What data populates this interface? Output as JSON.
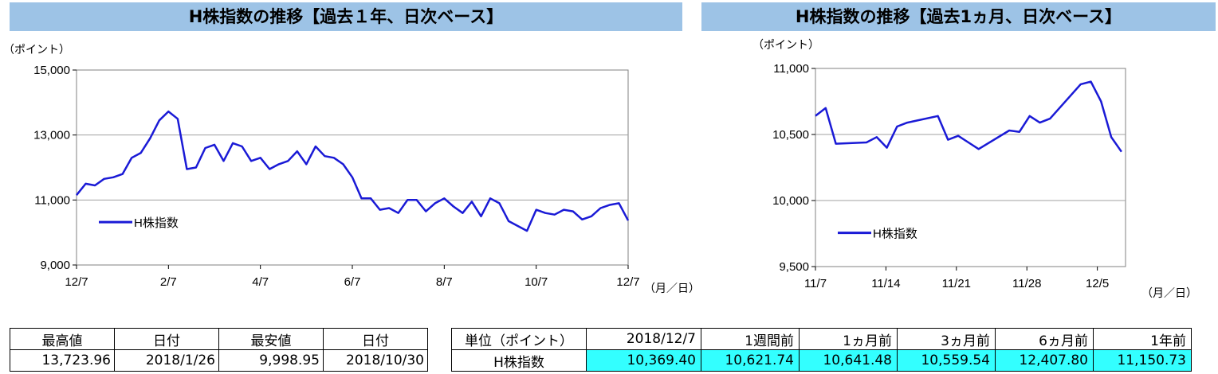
{
  "charts_titles": {
    "left": "H株指数の推移【過去１年、日次ベース】",
    "right": "H株指数の推移【過去1ヵ月、日次ベース】"
  },
  "colors": {
    "line": "#1a1ad6",
    "title_bg": "#9dc3e6",
    "highlight": "#33ffff"
  },
  "chart_data": [
    {
      "type": "line",
      "title": "H株指数の推移【過去１年、日次ベース】",
      "ylabel": "（ポイント）",
      "xunit": "（月／日）",
      "ylim": [
        9000,
        15000
      ],
      "yticks": [
        "9,000",
        "11,000",
        "13,000",
        "15,000"
      ],
      "ytick_values": [
        9000,
        11000,
        13000,
        15000
      ],
      "xticks": [
        "12/7",
        "2/7",
        "4/7",
        "6/7",
        "8/7",
        "10/7",
        "12/7"
      ],
      "grid": true,
      "legend": "left-lower",
      "series": [
        {
          "name": "H株指数",
          "x": [
            0,
            0.2,
            0.4,
            0.6,
            0.8,
            1,
            1.2,
            1.4,
            1.6,
            1.8,
            2,
            2.2,
            2.4,
            2.6,
            2.8,
            3,
            3.2,
            3.4,
            3.6,
            3.8,
            4,
            4.2,
            4.4,
            4.6,
            4.8,
            5,
            5.2,
            5.4,
            5.6,
            5.8,
            6,
            6.2,
            6.4,
            6.6,
            6.8,
            7,
            7.2,
            7.4,
            7.6,
            7.8,
            8,
            8.2,
            8.4,
            8.6,
            8.8,
            9,
            9.2,
            9.4,
            9.6,
            9.8,
            10,
            10.2,
            10.4,
            10.6,
            10.8,
            11,
            11.2,
            11.4,
            11.6,
            11.8,
            12
          ],
          "values": [
            11150,
            11500,
            11450,
            11650,
            11700,
            11800,
            12300,
            12450,
            12900,
            13450,
            13724,
            13500,
            11950,
            12000,
            12600,
            12700,
            12200,
            12750,
            12650,
            12200,
            12300,
            11950,
            12100,
            12200,
            12500,
            12100,
            12650,
            12350,
            12300,
            12100,
            11700,
            11050,
            11050,
            10700,
            10750,
            10600,
            11000,
            11000,
            10650,
            10900,
            11050,
            10800,
            10600,
            10950,
            10500,
            11050,
            10900,
            10350,
            10200,
            10050,
            10700,
            10600,
            10550,
            10700,
            10650,
            10400,
            10500,
            10750,
            10850,
            10900,
            10369
          ]
        }
      ]
    },
    {
      "type": "line",
      "title": "H株指数の推移【過去1ヵ月、日次ベース】",
      "ylabel": "（ポイント）",
      "xunit": "（月／日）",
      "ylim": [
        9500,
        11000
      ],
      "yticks": [
        "9,500",
        "10,000",
        "10,500",
        "11,000"
      ],
      "ytick_values": [
        9500,
        10000,
        10500,
        11000
      ],
      "xticks": [
        "11/7",
        "11/14",
        "11/21",
        "11/28",
        "12/5"
      ],
      "grid": true,
      "legend": "left-lower",
      "series": [
        {
          "name": "H株指数",
          "x": [
            0,
            1,
            2,
            5,
            6,
            7,
            8,
            9,
            12,
            13,
            14,
            15,
            16,
            19,
            20,
            21,
            22,
            23,
            26,
            27,
            28,
            29,
            30
          ],
          "values": [
            10641,
            10700,
            10430,
            10440,
            10480,
            10400,
            10560,
            10590,
            10640,
            10460,
            10490,
            10440,
            10390,
            10530,
            10520,
            10640,
            10590,
            10620,
            10880,
            10900,
            10750,
            10480,
            10369
          ]
        }
      ]
    }
  ],
  "summary_table": {
    "headers": [
      "最高値",
      "日付",
      "最安値",
      "日付"
    ],
    "values": [
      "13,723.96",
      "2018/1/26",
      "9,998.95",
      "2018/10/30"
    ]
  },
  "change_table": {
    "headers": [
      "単位（ポイント）",
      "2018/12/7",
      "1週間前",
      "1ヵ月前",
      "3ヵ月前",
      "6ヵ月前",
      "1年前"
    ],
    "row_label": "H株指数",
    "values": [
      "10,369.40",
      "10,621.74",
      "10,641.48",
      "10,559.54",
      "12,407.80",
      "11,150.73"
    ]
  }
}
